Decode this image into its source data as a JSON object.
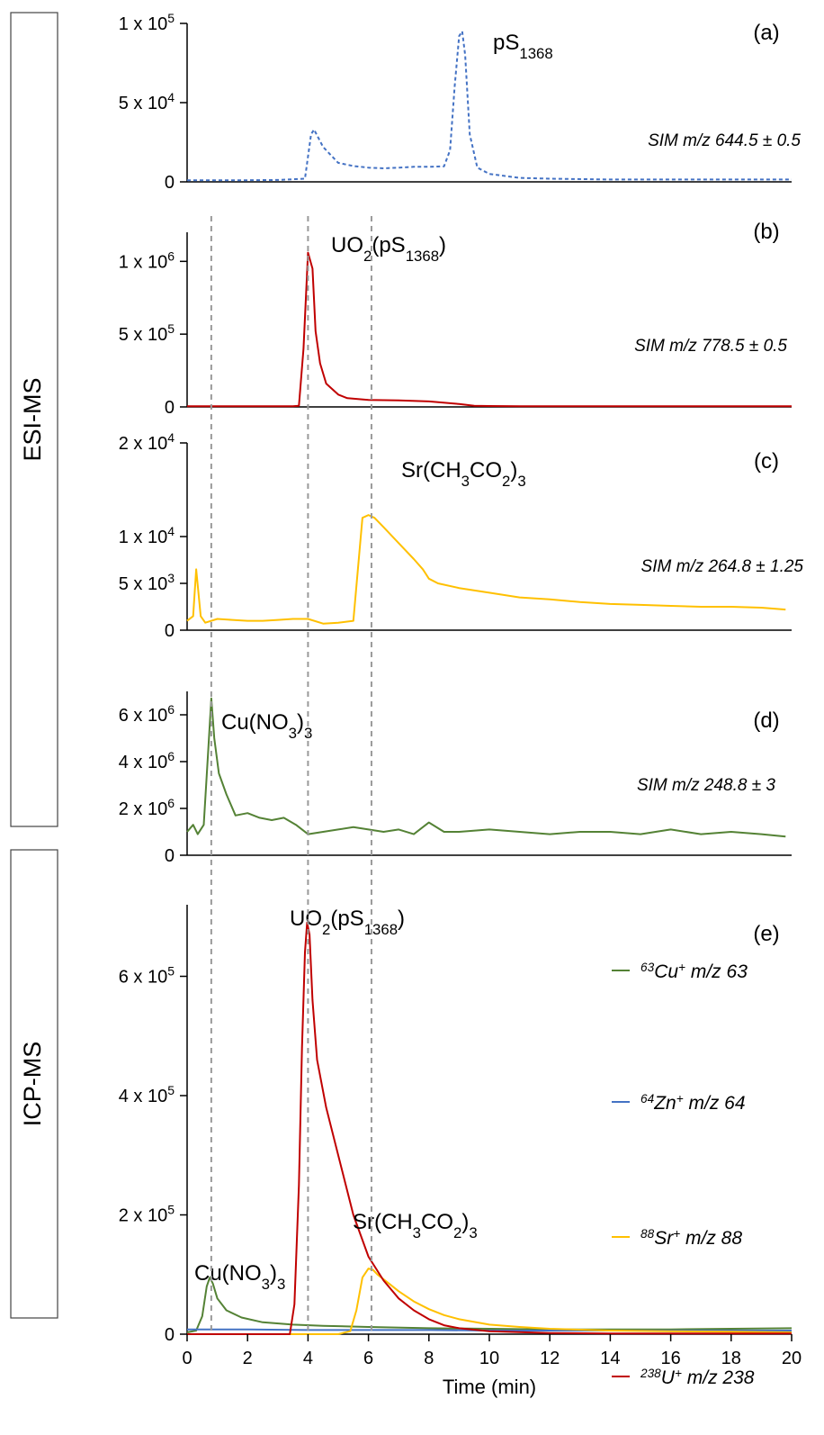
{
  "groups": [
    {
      "label": "ESI-MS"
    },
    {
      "label": "ICP-MS"
    }
  ],
  "xaxis": {
    "label": "Time (min)",
    "ticks": [
      "0",
      "2",
      "4",
      "6",
      "8",
      "10",
      "12",
      "14",
      "16",
      "18",
      "20"
    ]
  },
  "chart_data": [
    {
      "type": "line",
      "panel": "(a)",
      "group": "ESI-MS",
      "annotation": "pS1368",
      "sim_label": "SIM m/z 644.5 ± 0.5",
      "xlim": [
        0,
        20
      ],
      "ylim": [
        0,
        100000
      ],
      "yticks": [
        {
          "v": 0,
          "t": "0"
        },
        {
          "v": 50000,
          "t": "5 x 10^4"
        },
        {
          "v": 100000,
          "t": "1 x 10^5"
        }
      ],
      "style": {
        "color": "#4472c4",
        "dashed": true
      },
      "series": [
        {
          "x": [
            0,
            1,
            2,
            3,
            3.9,
            4.1,
            4.2,
            4.5,
            5,
            5.5,
            6,
            6.5,
            7,
            7.5,
            8,
            8.5,
            8.7,
            8.85,
            9.0,
            9.1,
            9.2,
            9.35,
            9.6,
            10,
            11,
            12,
            14,
            16,
            18,
            20
          ],
          "y": [
            1000,
            1000,
            1000,
            1200,
            2000,
            30000,
            33000,
            22000,
            12000,
            10000,
            9000,
            8500,
            9000,
            9500,
            9500,
            9800,
            20000,
            60000,
            92000,
            95000,
            80000,
            30000,
            9000,
            5000,
            2500,
            2000,
            1500,
            1500,
            1500,
            1500
          ]
        }
      ]
    },
    {
      "type": "line",
      "panel": "(b)",
      "group": "ESI-MS",
      "annotation": "UO2(pS1368)",
      "sim_label": "SIM m/z 778.5 ± 0.5",
      "xlim": [
        0,
        20
      ],
      "ylim": [
        0,
        1200000
      ],
      "yticks": [
        {
          "v": 0,
          "t": "0"
        },
        {
          "v": 500000,
          "t": "5 x 10^5"
        },
        {
          "v": 1000000,
          "t": "1 x 10^6"
        }
      ],
      "style": {
        "color": "#c00000",
        "dashed": false
      },
      "series": [
        {
          "x": [
            0,
            1,
            2,
            3,
            3.5,
            3.7,
            3.85,
            4.0,
            4.15,
            4.25,
            4.4,
            4.6,
            5,
            5.3,
            6,
            7,
            8,
            9,
            9.5,
            10,
            11,
            12,
            14,
            16,
            18,
            20
          ],
          "y": [
            5000,
            5000,
            5000,
            5000,
            5000,
            8000,
            400000,
            1060000,
            950000,
            520000,
            300000,
            160000,
            85000,
            60000,
            48000,
            45000,
            38000,
            20000,
            8000,
            6000,
            5000,
            5000,
            5000,
            5000,
            5000,
            5000
          ]
        }
      ]
    },
    {
      "type": "line",
      "panel": "(c)",
      "group": "ESI-MS",
      "annotation": "Sr(CH3CO2)3",
      "sim_label": "SIM m/z 264.8 ± 1.25",
      "xlim": [
        0,
        20
      ],
      "ylim": [
        0,
        20000
      ],
      "yticks": [
        {
          "v": 0,
          "t": "0"
        },
        {
          "v": 5000,
          "t": "5 x 10^3"
        },
        {
          "v": 10000,
          "t": "1 x 10^4"
        },
        {
          "v": 20000,
          "t": "2 x 10^4"
        }
      ],
      "style": {
        "color": "#ffc000",
        "dashed": false
      },
      "series": [
        {
          "x": [
            0,
            0.2,
            0.3,
            0.45,
            0.6,
            1,
            1.5,
            2,
            2.5,
            3,
            3.5,
            4,
            4.5,
            5,
            5.5,
            5.8,
            6.0,
            6.2,
            6.5,
            7,
            7.5,
            7.8,
            8,
            8.3,
            9,
            10,
            11,
            12,
            13,
            14,
            15,
            16,
            17,
            18,
            19,
            19.8
          ],
          "y": [
            1000,
            1500,
            6500,
            1500,
            800,
            1200,
            1100,
            1000,
            1000,
            1100,
            1200,
            1200,
            700,
            800,
            1000,
            12000,
            12300,
            12000,
            11000,
            9300,
            7600,
            6500,
            5500,
            5000,
            4500,
            4000,
            3500,
            3300,
            3000,
            2800,
            2700,
            2600,
            2500,
            2500,
            2400,
            2200
          ]
        }
      ]
    },
    {
      "type": "line",
      "panel": "(d)",
      "group": "ESI-MS",
      "annotation": "Cu(NO3)3",
      "sim_label": "SIM m/z 248.8 ± 3",
      "xlim": [
        0,
        20
      ],
      "ylim": [
        0,
        7000000
      ],
      "yticks": [
        {
          "v": 0,
          "t": "0"
        },
        {
          "v": 2000000,
          "t": "2 x 10^6"
        },
        {
          "v": 4000000,
          "t": "4 x 10^6"
        },
        {
          "v": 6000000,
          "t": "6 x 10^6"
        }
      ],
      "style": {
        "color": "#548235",
        "dashed": false
      },
      "series": [
        {
          "x": [
            0,
            0.2,
            0.35,
            0.55,
            0.7,
            0.8,
            0.9,
            1.05,
            1.3,
            1.6,
            2,
            2.4,
            2.8,
            3.2,
            3.6,
            4,
            4.5,
            5,
            5.5,
            6,
            6.5,
            7,
            7.5,
            8,
            8.5,
            9,
            10,
            11,
            12,
            13,
            14,
            15,
            16,
            17,
            18,
            19,
            19.8
          ],
          "y": [
            1000000,
            1300000,
            900000,
            1300000,
            4500000,
            6700000,
            5000000,
            3500000,
            2600000,
            1700000,
            1800000,
            1600000,
            1500000,
            1600000,
            1300000,
            900000,
            1000000,
            1100000,
            1200000,
            1100000,
            1000000,
            1100000,
            900000,
            1400000,
            1000000,
            1000000,
            1100000,
            1000000,
            900000,
            1000000,
            1000000,
            900000,
            1100000,
            900000,
            1000000,
            900000,
            800000
          ]
        }
      ]
    },
    {
      "type": "line",
      "panel": "(e)",
      "group": "ICP-MS",
      "annotations": [
        {
          "text": "UO2(pS1368)"
        },
        {
          "text": "Sr(CH3CO2)3"
        },
        {
          "text": "Cu(NO3)3"
        }
      ],
      "xlim": [
        0,
        20
      ],
      "ylim": [
        0,
        720000
      ],
      "yticks": [
        {
          "v": 0,
          "t": "0"
        },
        {
          "v": 200000,
          "t": "2 x 10^5"
        },
        {
          "v": 400000,
          "t": "4 x 10^5"
        },
        {
          "v": 600000,
          "t": "6 x 10^5"
        }
      ],
      "series": [
        {
          "name": "63Cu+ m/z 63",
          "iso": "63",
          "el": "Cu+",
          "mz": "m/z 63",
          "color": "#548235",
          "x": [
            0,
            0.3,
            0.5,
            0.65,
            0.75,
            0.85,
            1.0,
            1.3,
            1.8,
            2.5,
            3.5,
            4.5,
            6,
            8,
            10,
            12,
            14,
            16,
            18,
            20
          ],
          "y": [
            3000,
            6000,
            30000,
            80000,
            95000,
            85000,
            60000,
            40000,
            28000,
            20000,
            16000,
            14000,
            12000,
            10000,
            9000,
            8000,
            8000,
            8000,
            9000,
            10000
          ]
        },
        {
          "name": "64Zn+ m/z 64",
          "iso": "64",
          "el": "Zn+",
          "mz": "m/z 64",
          "color": "#4472c4",
          "x": [
            0,
            2,
            4,
            6,
            8,
            10,
            12,
            14,
            16,
            18,
            20
          ],
          "y": [
            8000,
            8000,
            7000,
            7000,
            7000,
            6000,
            6000,
            6000,
            6000,
            6000,
            6000
          ]
        },
        {
          "name": "88Sr+ m/z 88",
          "iso": "88",
          "el": "Sr+",
          "mz": "m/z 88",
          "color": "#ffc000",
          "x": [
            0,
            3,
            5,
            5.4,
            5.6,
            5.8,
            6.0,
            6.15,
            6.3,
            6.6,
            7,
            7.5,
            8,
            8.5,
            9,
            10,
            11,
            12,
            14,
            16,
            18,
            20
          ],
          "y": [
            0,
            0,
            0,
            5000,
            40000,
            95000,
            110000,
            108000,
            100000,
            88000,
            72000,
            55000,
            42000,
            32000,
            25000,
            16000,
            12000,
            9000,
            6000,
            5000,
            4000,
            3000
          ]
        },
        {
          "name": "238U+ m/z 238",
          "iso": "238",
          "el": "U+",
          "mz": "m/z 238",
          "color": "#c00000",
          "x": [
            0,
            3,
            3.4,
            3.55,
            3.7,
            3.8,
            3.9,
            3.97,
            4.05,
            4.15,
            4.3,
            4.6,
            5,
            5.5,
            6,
            6.5,
            7,
            7.5,
            8,
            8.5,
            9,
            10,
            12,
            14,
            16,
            18,
            20
          ],
          "y": [
            0,
            0,
            0,
            50000,
            250000,
            480000,
            640000,
            690000,
            670000,
            560000,
            460000,
            380000,
            300000,
            200000,
            130000,
            90000,
            60000,
            40000,
            25000,
            15000,
            10000,
            5000,
            2000,
            1000,
            1000,
            1000,
            1000
          ]
        }
      ]
    }
  ]
}
